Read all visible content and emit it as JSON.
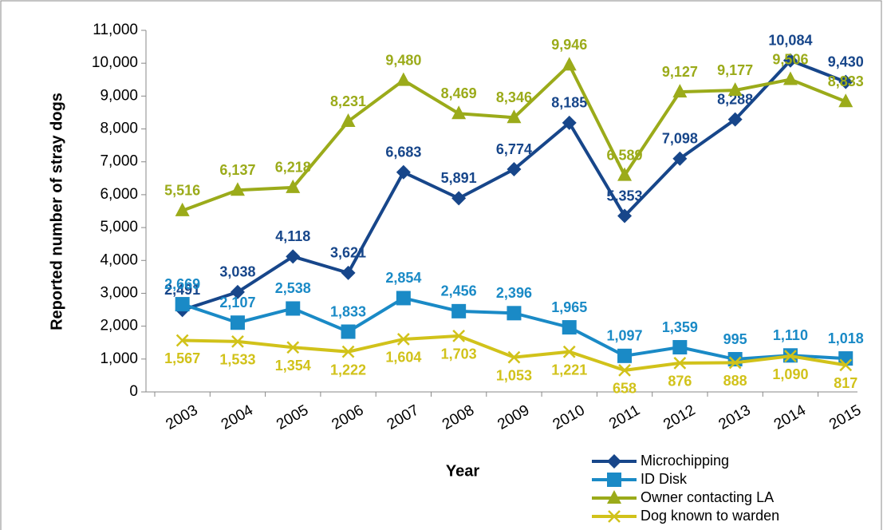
{
  "chart_data": {
    "type": "line",
    "x_label": "Year",
    "y_label": "Reported number of stray dogs",
    "categories": [
      "2003",
      "2004",
      "2005",
      "2006",
      "2007",
      "2008",
      "2009",
      "2010",
      "2011",
      "2012",
      "2013",
      "2014",
      "2015"
    ],
    "ylim": [
      0,
      11000
    ],
    "yticks": [
      0,
      {
        "value": 1000,
        "label": "1,000"
      },
      {
        "value": 2000,
        "label": "2,000"
      },
      {
        "value": 3000,
        "label": "3,000"
      },
      {
        "value": 4000,
        "label": "4,000"
      },
      {
        "value": 5000,
        "label": "5,000"
      },
      {
        "value": 6000,
        "label": "6,000"
      },
      {
        "value": 7000,
        "label": "7,000"
      },
      {
        "value": 8000,
        "label": "8,000"
      },
      {
        "value": 9000,
        "label": "9,000"
      },
      {
        "value": 10000,
        "label": "10,000"
      },
      {
        "value": 11000,
        "label": "11,000"
      }
    ],
    "series": [
      {
        "name": "Microchipping",
        "color": "#17468a",
        "marker": "diamond",
        "values": [
          2491,
          3038,
          4118,
          3621,
          6683,
          5891,
          6774,
          8185,
          5353,
          7098,
          8288,
          10084,
          9430
        ],
        "value_labels": [
          "2,491",
          "3,038",
          "4,118",
          "3,621",
          "6,683",
          "5,891",
          "6,774",
          "8,185",
          "5,353",
          "7,098",
          "8,288",
          "10,084",
          "9,430"
        ]
      },
      {
        "name": "ID Disk",
        "color": "#1a8ac6",
        "marker": "square",
        "values": [
          2669,
          2107,
          2538,
          1833,
          2854,
          2456,
          2396,
          1965,
          1097,
          1359,
          995,
          1110,
          1018
        ],
        "value_labels": [
          "2,669",
          "2,107",
          "2,538",
          "1,833",
          "2,854",
          "2,456",
          "2,396",
          "1,965",
          "1,097",
          "1,359",
          "995",
          "1,110",
          "1,018"
        ]
      },
      {
        "name": "Owner contacting LA",
        "color": "#9bab1a",
        "marker": "triangle",
        "values": [
          5516,
          6137,
          6218,
          8231,
          9480,
          8469,
          8346,
          9946,
          6589,
          9127,
          9177,
          9506,
          8833
        ],
        "value_labels": [
          "5,516",
          "6,137",
          "6,218",
          "8,231",
          "9,480",
          "8,469",
          "8,346",
          "9,946",
          "6,589",
          "9,127",
          "9,177",
          "9,506",
          "8,833"
        ]
      },
      {
        "name": "Dog known to warden",
        "color": "#d1c21a",
        "marker": "x",
        "values": [
          1567,
          1533,
          1354,
          1222,
          1604,
          1703,
          1053,
          1221,
          658,
          876,
          888,
          1090,
          817
        ],
        "value_labels": [
          "1,567",
          "1,533",
          "1,354",
          "1,222",
          "1,604",
          "1,703",
          "1,053",
          "1,221",
          "658",
          "876",
          "888",
          "1,090",
          "817"
        ]
      }
    ]
  }
}
